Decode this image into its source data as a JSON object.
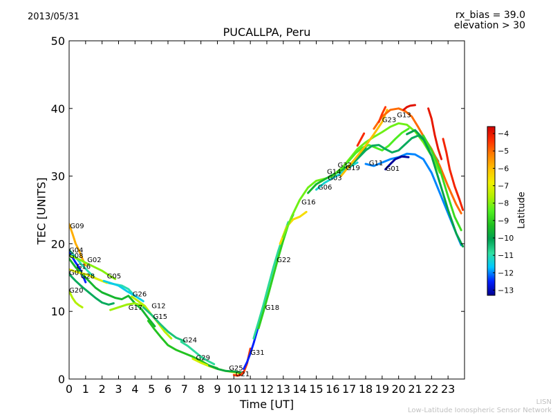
{
  "header": {
    "date": "2013/05/31",
    "rx_bias": "rx_bias = 39.0",
    "elevation": "elevation > 30"
  },
  "footer": {
    "credit_short": "LISN",
    "credit_long": "Low-Latitude Ionospheric Sensor Network"
  },
  "chart_data": {
    "type": "line",
    "title": "PUCALLPA, Peru",
    "xlabel": "Time [UT]",
    "ylabel": "TEC [UNITS]",
    "xlim": [
      0,
      24
    ],
    "ylim": [
      0,
      50
    ],
    "xticks": [
      0,
      1,
      2,
      3,
      4,
      5,
      6,
      7,
      8,
      9,
      10,
      11,
      12,
      13,
      14,
      15,
      16,
      17,
      18,
      19,
      20,
      21,
      22,
      23
    ],
    "yticks": [
      0,
      10,
      20,
      30,
      40,
      50
    ],
    "grid": false,
    "colorbar": {
      "label": "Latitude",
      "range": [
        -13.3,
        -3.6
      ],
      "ticks": [
        -4,
        -5,
        -6,
        -7,
        -8,
        -9,
        -10,
        -11,
        -12,
        -13
      ],
      "colormap": [
        "#00008f",
        "#0020ff",
        "#00c8ff",
        "#30e0a0",
        "#00a050",
        "#20c020",
        "#50f020",
        "#b0f000",
        "#f0f000",
        "#ffc000",
        "#ff8000",
        "#ff3000",
        "#d00000"
      ]
    },
    "series": [
      {
        "name": "G09",
        "lat": -5.8,
        "x": [
          0.0,
          0.2,
          0.4,
          0.6,
          0.8,
          1.0
        ],
        "y": [
          22.9,
          21.5,
          20.0,
          19.0,
          17.8,
          16.8
        ]
      },
      {
        "name": "G04",
        "lat": -11.0,
        "x": [
          0.0,
          0.4,
          0.8,
          1.2,
          1.6,
          2.0,
          2.4,
          2.8,
          3.2,
          3.6,
          3.9
        ],
        "y": [
          19.1,
          18.0,
          16.8,
          15.8,
          14.9,
          14.5,
          14.2,
          14.0,
          13.8,
          13.3,
          12.5
        ]
      },
      {
        "name": "G08",
        "lat": -12.5,
        "x": [
          0.0,
          0.2,
          0.4,
          0.6,
          0.8,
          1.0
        ],
        "y": [
          18.7,
          18.0,
          17.2,
          16.5,
          15.5,
          14.3
        ]
      },
      {
        "name": "G02",
        "lat": -8.0,
        "x": [
          0.0,
          0.5,
          1.0,
          1.5,
          2.0,
          2.5,
          2.8
        ],
        "y": [
          18.3,
          17.8,
          17.2,
          16.6,
          16.0,
          15.2,
          14.8
        ]
      },
      {
        "name": "G16",
        "lat": -9.5,
        "x": [
          0.0,
          0.4,
          0.8,
          1.2,
          1.6,
          2.0,
          2.4,
          2.8,
          3.2,
          3.6,
          4.0,
          4.4,
          4.8,
          5.2
        ],
        "y": [
          17.8,
          16.5,
          15.5,
          14.5,
          13.5,
          12.8,
          12.4,
          12.0,
          11.8,
          12.3,
          11.2,
          10.3,
          9.0,
          7.8
        ]
      },
      {
        "name": "G28",
        "lat": -7.0,
        "x": [
          0.0,
          0.5,
          1.0,
          1.5,
          2.0,
          2.3
        ],
        "y": [
          16.2,
          15.8,
          15.5,
          15.0,
          14.5,
          14.2
        ]
      },
      {
        "name": "G07",
        "lat": -10.2,
        "x": [
          0.0,
          0.4,
          0.8,
          1.2,
          1.6,
          2.0,
          2.4,
          2.7
        ],
        "y": [
          15.5,
          14.5,
          13.6,
          12.8,
          12.0,
          11.3,
          11.0,
          11.2
        ]
      },
      {
        "name": "G05",
        "lat": -11.5,
        "x": [
          2.1,
          2.5,
          3.0,
          3.5,
          4.0,
          4.5
        ],
        "y": [
          14.5,
          14.2,
          13.8,
          13.0,
          12.3,
          11.5
        ]
      },
      {
        "name": "G20",
        "lat": -7.6,
        "x": [
          0.0,
          0.2,
          0.4,
          0.6,
          0.8
        ],
        "y": [
          13.0,
          12.0,
          11.3,
          10.9,
          10.6
        ]
      },
      {
        "name": "G26",
        "lat": -7.5,
        "x": [
          3.8,
          4.2,
          4.6,
          5.0,
          5.4,
          5.8,
          6.2
        ],
        "y": [
          12.2,
          11.5,
          10.8,
          9.5,
          8.3,
          7.0,
          6.0
        ]
      },
      {
        "name": "G17",
        "lat": -7.8,
        "x": [
          2.5,
          3.0,
          3.5,
          4.0,
          4.5
        ],
        "y": [
          10.2,
          10.6,
          11.0,
          11.2,
          10.8
        ]
      },
      {
        "name": "G12",
        "lat": -10.5,
        "x": [
          4.5,
          5.0,
          5.5,
          6.0,
          6.5,
          7.0
        ],
        "y": [
          10.6,
          9.5,
          8.2,
          7.0,
          6.1,
          5.6
        ]
      },
      {
        "name": "G15",
        "lat": -9.2,
        "x": [
          4.8,
          5.2,
          5.6,
          6.0,
          6.5,
          7.0,
          7.5,
          8.0,
          8.5,
          9.0
        ],
        "y": [
          8.6,
          7.3,
          6.1,
          5.0,
          4.3,
          3.8,
          3.3,
          2.7,
          2.0,
          1.6
        ]
      },
      {
        "name": "G24",
        "lat": -10.8,
        "x": [
          6.8,
          7.2,
          7.6,
          8.0,
          8.4,
          8.8
        ],
        "y": [
          5.5,
          4.9,
          4.1,
          3.3,
          2.7,
          2.2
        ]
      },
      {
        "name": "G29",
        "lat": -7.2,
        "x": [
          7.5,
          8.0,
          8.5,
          9.0,
          9.5,
          10.0,
          10.4
        ],
        "y": [
          3.0,
          2.4,
          1.9,
          1.5,
          1.2,
          1.0,
          0.8
        ]
      },
      {
        "name": "G25",
        "lat": -9.8,
        "x": [
          8.5,
          9.0,
          9.5,
          10.0,
          10.4
        ],
        "y": [
          2.0,
          1.5,
          1.2,
          1.1,
          1.0
        ]
      },
      {
        "name": "G21",
        "lat": -4.5,
        "x": [
          10.0,
          10.2,
          10.4,
          10.6,
          10.8,
          11.0
        ],
        "y": [
          0.6,
          0.5,
          0.6,
          1.0,
          2.3,
          4.5
        ]
      },
      {
        "name": "G31",
        "lat": -12.5,
        "x": [
          10.6,
          10.8,
          11.0,
          11.2,
          11.4,
          11.6,
          11.8
        ],
        "y": [
          1.5,
          2.5,
          3.8,
          5.3,
          7.0,
          8.8,
          10.8
        ]
      },
      {
        "name": "G18",
        "lat": -10.8,
        "x": [
          11.2,
          11.5,
          11.8,
          12.1,
          12.4,
          12.7,
          13.0,
          13.3
        ],
        "y": [
          6.0,
          8.5,
          11.0,
          13.8,
          16.5,
          19.0,
          21.2,
          23.2
        ]
      },
      {
        "name": "G22",
        "lat": -9.0,
        "x": [
          11.5,
          11.8,
          12.1,
          12.4,
          12.7,
          13.0,
          13.3,
          13.6
        ],
        "y": [
          7.5,
          10.0,
          12.6,
          15.3,
          18.0,
          20.5,
          22.8,
          24.3
        ]
      },
      {
        "name": "G16",
        "lat": -6.5,
        "x": [
          12.8,
          13.2,
          13.6,
          14.0,
          14.4
        ],
        "y": [
          20.0,
          22.5,
          23.6,
          24.0,
          24.7
        ]
      },
      {
        "name": "G06",
        "lat": -8.2,
        "x": [
          13.0,
          13.5,
          14.0,
          14.5,
          15.0,
          15.5,
          16.0,
          16.5,
          17.0,
          17.5,
          18.0,
          18.5,
          19.0,
          19.5,
          20.0,
          20.5,
          21.0,
          21.5,
          22.0,
          22.5
        ],
        "y": [
          21.0,
          24.0,
          26.5,
          28.3,
          29.3,
          29.6,
          30.0,
          31.0,
          32.5,
          34.0,
          35.0,
          35.8,
          36.5,
          37.3,
          37.8,
          37.6,
          36.6,
          35.0,
          33.0,
          30.5
        ]
      },
      {
        "name": "G03",
        "lat": -9.5,
        "x": [
          14.5,
          15.0,
          15.5,
          16.0,
          16.5,
          17.0,
          17.5,
          18.0
        ],
        "y": [
          27.5,
          28.8,
          29.5,
          30.2,
          30.8,
          31.6,
          32.8,
          34.2
        ]
      },
      {
        "name": "G14",
        "lat": -11.3,
        "x": [
          15.0,
          15.5,
          16.0,
          16.5,
          17.0,
          17.5
        ],
        "y": [
          28.0,
          29.0,
          29.7,
          30.4,
          31.3,
          32.0
        ]
      },
      {
        "name": "G32",
        "lat": -8.5,
        "x": [
          16.2,
          16.6,
          17.0,
          17.4,
          17.8,
          18.2,
          18.6,
          19.0,
          19.4,
          19.8,
          20.2,
          20.6
        ],
        "y": [
          30.5,
          31.3,
          32.3,
          33.4,
          34.2,
          34.6,
          34.2,
          33.8,
          34.5,
          35.5,
          36.4,
          37.0
        ]
      },
      {
        "name": "G19",
        "lat": -10.2,
        "x": [
          16.8,
          17.2,
          17.6,
          18.0,
          18.4,
          18.8,
          19.2,
          19.6,
          20.0,
          20.4,
          20.8,
          21.2,
          21.6,
          22.0,
          22.4
        ],
        "y": [
          31.0,
          31.8,
          32.8,
          33.8,
          34.5,
          34.6,
          34.0,
          33.5,
          33.8,
          34.7,
          35.6,
          36.0,
          35.2,
          33.8,
          32.2
        ]
      },
      {
        "name": "G11",
        "lat": -12.0,
        "x": [
          18.0,
          18.5,
          19.0,
          19.5,
          20.0,
          20.5,
          21.0,
          21.5,
          22.0,
          22.5,
          23.0,
          23.5,
          23.8
        ],
        "y": [
          31.8,
          31.5,
          32.0,
          32.5,
          32.8,
          33.3,
          33.2,
          32.5,
          30.5,
          27.5,
          24.5,
          21.5,
          19.8
        ]
      },
      {
        "name": "G01",
        "lat": -13.2,
        "x": [
          19.2,
          19.5,
          19.8,
          20.2,
          20.6
        ],
        "y": [
          31.0,
          31.8,
          32.5,
          32.9,
          32.8
        ]
      },
      {
        "name": "G23",
        "lat": -6.0,
        "x": [
          16.5,
          17.0,
          17.5,
          18.0,
          18.5,
          19.0,
          19.3
        ],
        "y": [
          30.0,
          31.5,
          33.0,
          34.5,
          36.2,
          38.0,
          39.8
        ]
      },
      {
        "name": "G13",
        "lat": -5.0,
        "x": [
          18.5,
          19.0,
          19.5,
          20.0,
          20.4,
          20.8,
          21.2,
          21.6,
          22.0,
          22.5,
          23.0,
          23.5,
          23.8
        ],
        "y": [
          37.0,
          38.8,
          39.8,
          40.0,
          39.6,
          38.8,
          37.2,
          35.5,
          34.0,
          31.5,
          28.5,
          25.8,
          24.5
        ]
      },
      {
        "name": "",
        "lat": -3.9,
        "x": [
          20.3,
          20.5,
          20.7,
          21.0
        ],
        "y": [
          39.8,
          40.2,
          40.4,
          40.5
        ]
      },
      {
        "name": "",
        "lat": -4.0,
        "x": [
          21.8,
          22.0,
          22.2,
          22.4,
          22.6
        ],
        "y": [
          40.0,
          38.5,
          36.0,
          34.0,
          32.5
        ]
      },
      {
        "name": "",
        "lat": -4.2,
        "x": [
          22.7,
          22.9,
          23.1,
          23.4,
          23.7,
          23.9
        ],
        "y": [
          35.5,
          33.5,
          31.0,
          28.5,
          26.5,
          25.0
        ]
      },
      {
        "name": "",
        "lat": -8.8,
        "x": [
          21.5,
          22.0,
          22.5,
          23.0,
          23.4,
          23.8
        ],
        "y": [
          36.0,
          33.8,
          31.0,
          27.0,
          24.0,
          22.0
        ]
      },
      {
        "name": "",
        "lat": -10.0,
        "x": [
          20.5,
          21.0,
          21.5,
          22.0,
          22.5,
          23.0,
          23.5,
          23.9
        ],
        "y": [
          36.2,
          36.8,
          35.5,
          33.0,
          29.0,
          25.0,
          21.5,
          19.6
        ]
      },
      {
        "name": "",
        "lat": -4.3,
        "x": [
          17.5,
          17.7,
          17.9
        ],
        "y": [
          34.5,
          35.4,
          36.3
        ]
      },
      {
        "name": "",
        "lat": -4.5,
        "x": [
          18.8,
          19.0,
          19.2
        ],
        "y": [
          38.0,
          39.2,
          40.2
        ]
      }
    ],
    "labels": [
      {
        "text": "G09",
        "x": 0.05,
        "y": 22.3
      },
      {
        "text": "G04",
        "x": 0.0,
        "y": 18.7
      },
      {
        "text": "G08",
        "x": 0.0,
        "y": 17.9
      },
      {
        "text": "G02",
        "x": 1.1,
        "y": 17.3
      },
      {
        "text": "G16",
        "x": 0.45,
        "y": 16.3
      },
      {
        "text": "G28",
        "x": 0.7,
        "y": 14.9
      },
      {
        "text": "G07",
        "x": 0.0,
        "y": 15.4
      },
      {
        "text": "G05",
        "x": 2.3,
        "y": 14.9
      },
      {
        "text": "G20",
        "x": 0.0,
        "y": 12.8
      },
      {
        "text": "G26",
        "x": 3.85,
        "y": 12.2
      },
      {
        "text": "G17",
        "x": 3.6,
        "y": 10.2
      },
      {
        "text": "G12",
        "x": 5.0,
        "y": 10.5
      },
      {
        "text": "G15",
        "x": 5.1,
        "y": 8.9
      },
      {
        "text": "G24",
        "x": 6.9,
        "y": 5.4
      },
      {
        "text": "G29",
        "x": 7.7,
        "y": 2.8
      },
      {
        "text": "G25",
        "x": 9.7,
        "y": 1.3
      },
      {
        "text": "G21",
        "x": 10.1,
        "y": 0.4
      },
      {
        "text": "G31",
        "x": 11.0,
        "y": 3.6
      },
      {
        "text": "G18",
        "x": 11.9,
        "y": 10.2
      },
      {
        "text": "G22",
        "x": 12.6,
        "y": 17.3
      },
      {
        "text": "G16",
        "x": 14.1,
        "y": 25.8
      },
      {
        "text": "G06",
        "x": 15.1,
        "y": 28.0
      },
      {
        "text": "G03",
        "x": 15.7,
        "y": 29.4
      },
      {
        "text": "G14",
        "x": 15.65,
        "y": 30.3
      },
      {
        "text": "G32",
        "x": 16.3,
        "y": 31.3
      },
      {
        "text": "G19",
        "x": 16.8,
        "y": 30.9
      },
      {
        "text": "G11",
        "x": 18.2,
        "y": 31.6
      },
      {
        "text": "G01",
        "x": 19.2,
        "y": 30.8
      },
      {
        "text": "G23",
        "x": 19.0,
        "y": 38.0
      },
      {
        "text": "G13",
        "x": 19.9,
        "y": 38.7
      }
    ]
  }
}
